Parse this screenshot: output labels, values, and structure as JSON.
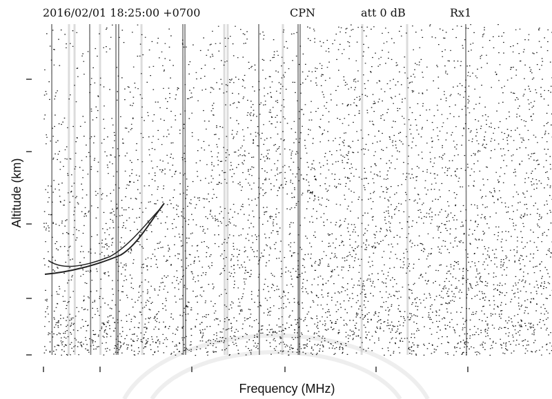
{
  "header": {
    "timestamp": "2016/02/01 18:25:00 +0700",
    "station": "CPN",
    "attenuation": "att 0 dB",
    "receiver": "Rx1"
  },
  "axes": {
    "y_label": "Altitude (km)",
    "x_label": "Frequency (MHz)"
  }
}
